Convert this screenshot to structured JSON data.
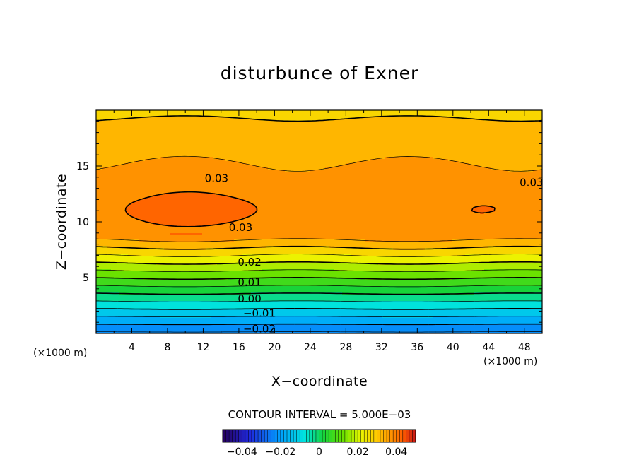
{
  "chart_data": {
    "type": "contour",
    "title": "disturbunce of Exner",
    "xlabel": "X−coordinate",
    "ylabel": "Z−coordinate",
    "x_unit": "(×1000 m)",
    "y_unit": "(×1000 m)",
    "xlim": [
      0,
      50
    ],
    "ylim": [
      0,
      20
    ],
    "x_ticks": [
      4,
      8,
      12,
      16,
      20,
      24,
      28,
      32,
      36,
      40,
      44,
      48
    ],
    "x_tick_labels": [
      "4",
      "8",
      "12",
      "16",
      "20",
      "24",
      "28",
      "32",
      "36",
      "40",
      "44",
      "48"
    ],
    "y_ticks": [
      5,
      10,
      15
    ],
    "y_tick_labels": [
      "5",
      "10",
      "15"
    ],
    "contour_interval_text": "CONTOUR INTERVAL = 5.000E−03",
    "contour_interval": 0.005,
    "color_range": [
      -0.05,
      0.05
    ],
    "contour_labels": [
      {
        "text": "0.03",
        "x": 13.5,
        "z": 13.9
      },
      {
        "text": "0.03",
        "x": 48.8,
        "z": 13.5
      },
      {
        "text": "0.03",
        "x": 16.2,
        "z": 9.5
      },
      {
        "text": "0.02",
        "x": 17.2,
        "z": 6.4
      },
      {
        "text": "0.01",
        "x": 17.2,
        "z": 4.6
      },
      {
        "text": "0.00",
        "x": 17.2,
        "z": 3.1
      },
      {
        "text": "−0.01",
        "x": 18.3,
        "z": 1.8
      },
      {
        "text": "−0.02",
        "x": 18.3,
        "z": 0.4
      }
    ],
    "colorbar": {
      "ticks": [
        -0.04,
        -0.02,
        0,
        0.02,
        0.04
      ],
      "tick_labels": [
        "−0.04",
        "−0.02",
        "0",
        "0.02",
        "0.04"
      ]
    }
  }
}
